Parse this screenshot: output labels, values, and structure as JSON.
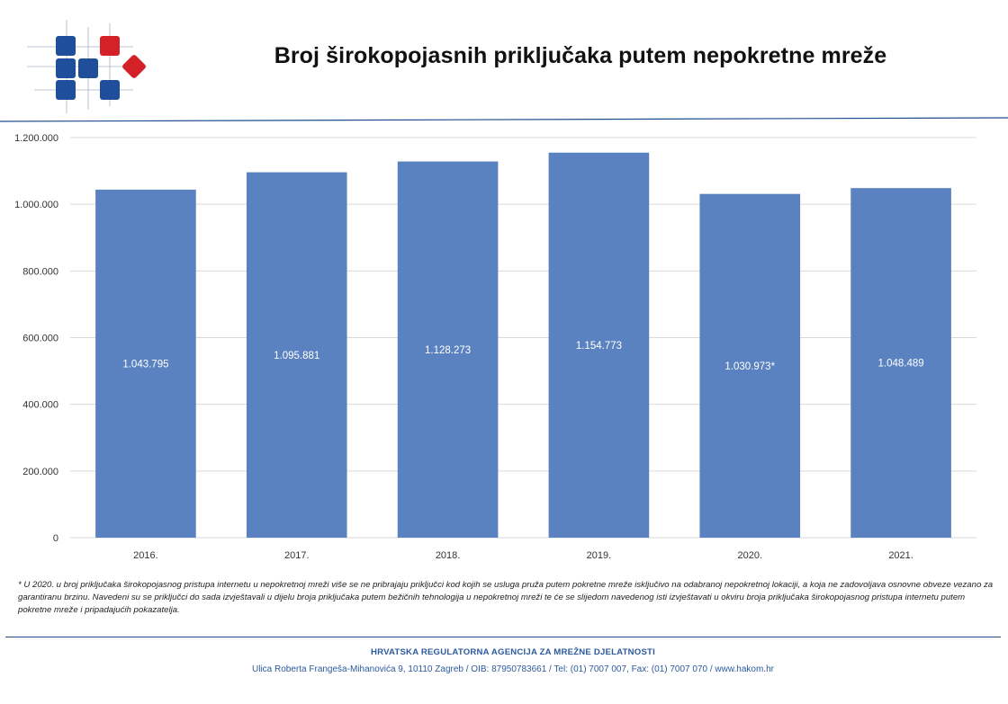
{
  "page": {
    "title": "Broj širokopojasnih priključaka putem nepokretne mreže",
    "footnote": "* U 2020. u broj priključaka širokopojasnog pristupa internetu u nepokretnoj mreži više se ne pribrajaju priključci kod kojih se usluga pruža putem pokretne mreže isključivo na odabranoj nepokretnoj lokaciji, a koja ne zadovoljava osnovne obveze vezano za garantiranu brzinu. Navedeni su se priključci do sada izvještavali u dijelu broja priključaka putem bežičnih tehnologija u nepokretnoj mreži te će se slijedom navedenog isti izvještavati u okviru broja priključaka širokopojasnog pristupa internetu putem pokretne mreže i pripadajućih pokazatelja.",
    "footer_org": "HRVATSKA REGULATORNA AGENCIJA ZA MREŽNE DJELATNOSTI",
    "footer_address": "Ulica Roberta Frangeša-Mihanovića 9, 10110 Zagreb / OIB: 87950783661 / Tel: (01) 7007 007, Fax: (01) 7007 070 / www.hakom.hr"
  },
  "colors": {
    "bar": "#5b82c0",
    "bar_label": "#ffffff",
    "grid": "#d9d9d9",
    "axis_text": "#333333",
    "logo_blue": "#1f4f9a",
    "logo_red": "#d42027",
    "rule": "#1f4e8c"
  },
  "chart_data": {
    "type": "bar",
    "categories": [
      "2016.",
      "2017.",
      "2018.",
      "2019.",
      "2020.",
      "2021."
    ],
    "values": [
      1043795,
      1095881,
      1128273,
      1154773,
      1030973,
      1048489
    ],
    "data_labels": [
      "1.043.795",
      "1.095.881",
      "1.128.273",
      "1.154.773",
      "1.030.973*",
      "1.048.489"
    ],
    "yticks": [
      0,
      200000,
      400000,
      600000,
      800000,
      1000000,
      1200000
    ],
    "ytick_labels": [
      "0",
      "200.000",
      "400.000",
      "600.000",
      "800.000",
      "1.000.000",
      "1.200.000"
    ],
    "ylim": [
      0,
      1200000
    ],
    "grid": true,
    "title": "",
    "xlabel": "",
    "ylabel": ""
  }
}
